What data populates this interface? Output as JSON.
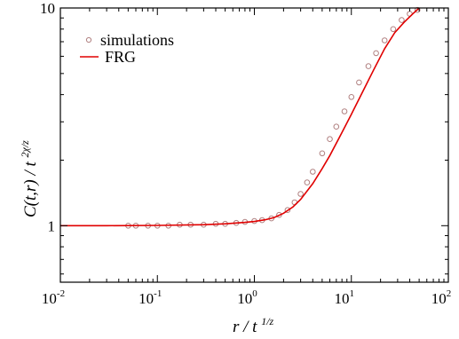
{
  "chart_data": {
    "type": "scatter",
    "xscale": "log",
    "yscale": "log",
    "xlim": [
      0.01,
      100
    ],
    "ylim": [
      0.55,
      10
    ],
    "grid": false,
    "legend_position": "top-left",
    "xlabel": {
      "base": "r / t",
      "sup": "1/z"
    },
    "ylabel": {
      "base": "C(t,r) / t",
      "sup": "2χ/z"
    },
    "x_ticks": [
      {
        "value": 0.01,
        "base": "10",
        "exp": "-2"
      },
      {
        "value": 0.1,
        "base": "10",
        "exp": "-1"
      },
      {
        "value": 1,
        "base": "10",
        "exp": "0"
      },
      {
        "value": 10,
        "base": "10",
        "exp": "1"
      },
      {
        "value": 100,
        "base": "10",
        "exp": "2"
      }
    ],
    "y_ticks": [
      {
        "value": 1,
        "label": "1"
      },
      {
        "value": 10,
        "label": "10"
      }
    ],
    "series": [
      {
        "name": "simulations",
        "kind": "scatter",
        "marker": "open-circle",
        "color": "#b08080",
        "x": [
          0.05,
          0.06,
          0.08,
          0.1,
          0.13,
          0.17,
          0.22,
          0.3,
          0.4,
          0.5,
          0.65,
          0.8,
          1.0,
          1.2,
          1.5,
          1.8,
          2.2,
          2.6,
          3.0,
          3.5,
          4.0,
          5.0,
          6.0,
          7.0,
          8.5,
          10,
          12,
          15,
          18,
          22,
          27,
          33,
          40,
          48
        ],
        "y": [
          1.0,
          1.0,
          1.0,
          1.0,
          1.0,
          1.01,
          1.01,
          1.01,
          1.02,
          1.02,
          1.03,
          1.04,
          1.05,
          1.06,
          1.08,
          1.12,
          1.18,
          1.28,
          1.4,
          1.58,
          1.77,
          2.15,
          2.5,
          2.85,
          3.35,
          3.9,
          4.55,
          5.4,
          6.2,
          7.1,
          8.0,
          8.8,
          9.4,
          9.8
        ]
      },
      {
        "name": "FRG",
        "kind": "line",
        "color": "#e00000",
        "x": [
          0.01,
          0.03,
          0.1,
          0.3,
          0.5,
          0.8,
          1.0,
          1.3,
          1.6,
          2.0,
          2.5,
          3.0,
          4.0,
          5.0,
          6.0,
          8.0,
          10,
          13,
          17,
          22,
          28,
          35,
          42,
          50
        ],
        "y": [
          1.0,
          1.0,
          1.003,
          1.01,
          1.02,
          1.035,
          1.045,
          1.065,
          1.09,
          1.14,
          1.22,
          1.32,
          1.56,
          1.83,
          2.1,
          2.68,
          3.25,
          4.1,
          5.2,
          6.5,
          7.7,
          8.6,
          9.3,
          10.0
        ]
      }
    ]
  }
}
